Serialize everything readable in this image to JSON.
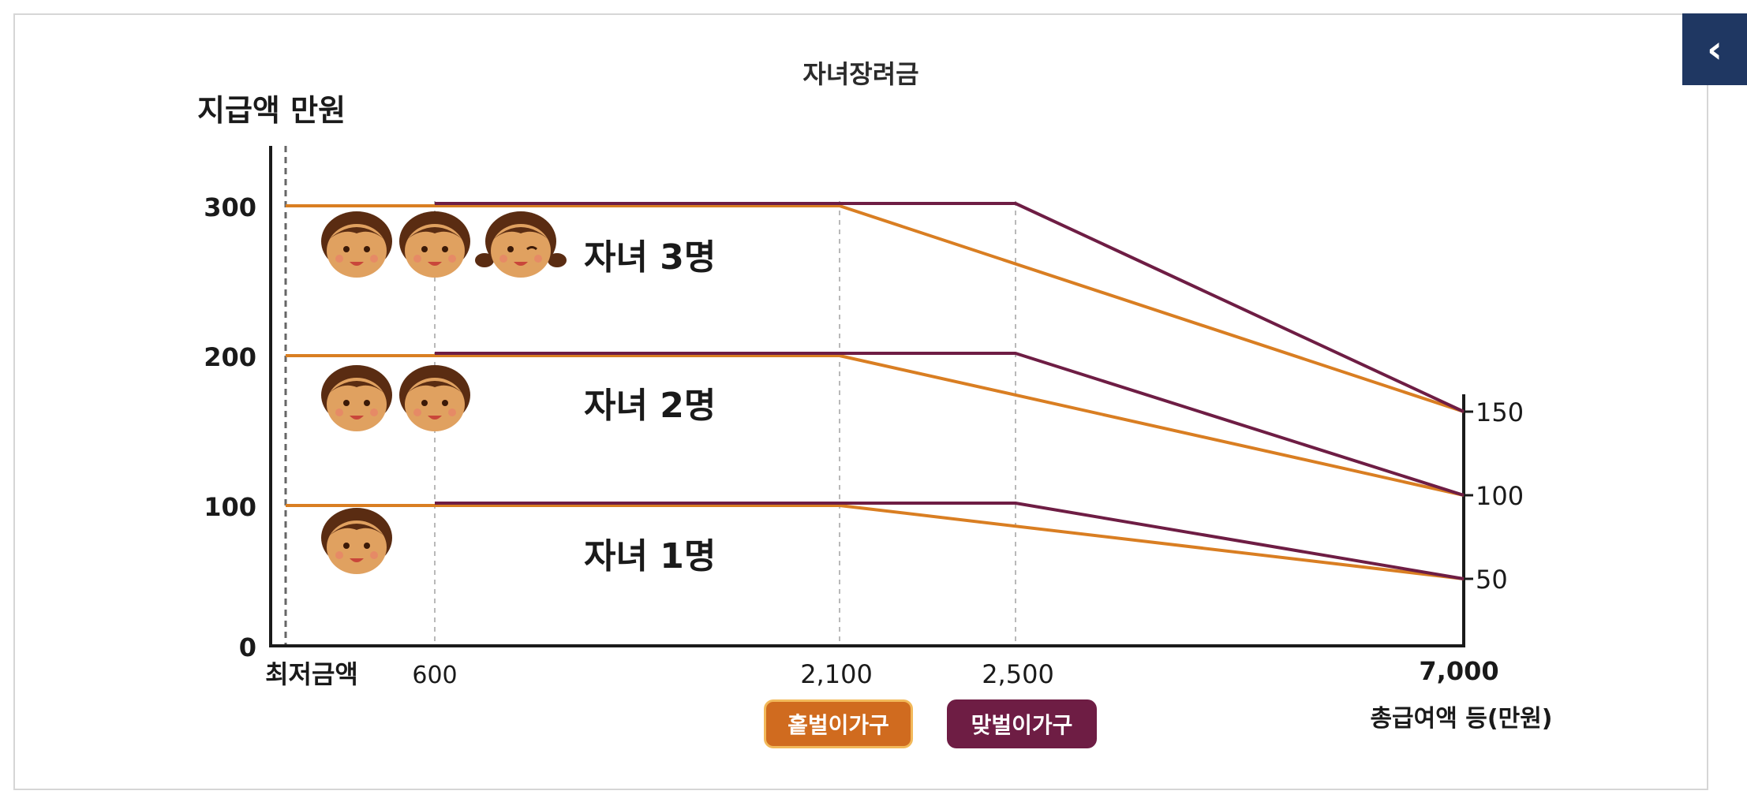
{
  "title": "자녀장려금",
  "back_button": {
    "icon": "chevron-left-icon",
    "label": "‹"
  },
  "colors": {
    "single": "#d97e22",
    "dual": "#6e1d44",
    "axis": "#1a1a1a",
    "navy": "#1f3762"
  },
  "chart_data": {
    "type": "line",
    "title": "자녀장려금",
    "ylabel": "지급액 만원",
    "xlabel": "총급여액 등(만원)",
    "x_ticks": [
      "최저금액",
      "600",
      "2,100",
      "2,500",
      "7,000"
    ],
    "y_ticks_left": [
      "0",
      "100",
      "200",
      "300"
    ],
    "y_ticks_right": [
      "50",
      "100",
      "150"
    ],
    "ylim": [
      0,
      330
    ],
    "groups": [
      {
        "label": "자녀 1명",
        "faces": 1,
        "series": [
          {
            "name": "홑벌이가구",
            "x": [
              0,
              2100,
              7000
            ],
            "y": [
              100,
              100,
              50
            ]
          },
          {
            "name": "맞벌이가구",
            "x": [
              600,
              2500,
              7000
            ],
            "y": [
              100,
              100,
              50
            ]
          }
        ]
      },
      {
        "label": "자녀 2명",
        "faces": 2,
        "series": [
          {
            "name": "홑벌이가구",
            "x": [
              0,
              2100,
              7000
            ],
            "y": [
              200,
              200,
              100
            ]
          },
          {
            "name": "맞벌이가구",
            "x": [
              600,
              2500,
              7000
            ],
            "y": [
              200,
              200,
              100
            ]
          }
        ]
      },
      {
        "label": "자녀 3명",
        "faces": 3,
        "series": [
          {
            "name": "홑벌이가구",
            "x": [
              0,
              2100,
              7000
            ],
            "y": [
              300,
              300,
              150
            ]
          },
          {
            "name": "맞벌이가구",
            "x": [
              600,
              2500,
              7000
            ],
            "y": [
              300,
              300,
              150
            ]
          }
        ]
      }
    ],
    "legend": [
      "홑벌이가구",
      "맞벌이가구"
    ],
    "legend_position": "bottom-center",
    "grid": "vertical-dashed"
  }
}
